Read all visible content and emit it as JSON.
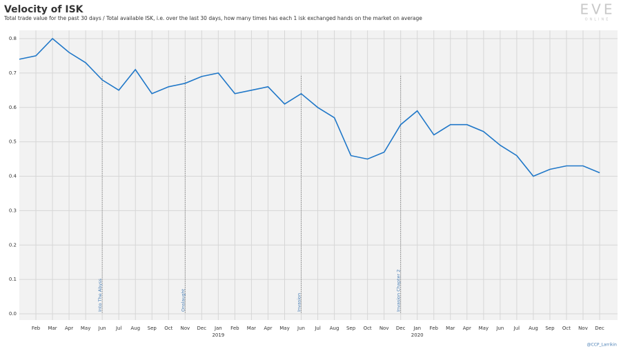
{
  "chart_data": {
    "type": "line",
    "title": "Velocity of ISK",
    "subtitle": "Total trade value for the past 30 days / Total available ISK, i.e. over the last 30 days, how many times has each 1 isk exchanged hands on the market on average",
    "logo": "EVE",
    "logo_sub": "ONLINE",
    "credit": "@CCP_Larrikin",
    "x": [
      "2018-01",
      "2018-02",
      "2018-03",
      "2018-04",
      "2018-05",
      "2018-06",
      "2018-07",
      "2018-08",
      "2018-09",
      "2018-10",
      "2018-11",
      "2018-12",
      "2019-01",
      "2019-02",
      "2019-03",
      "2019-04",
      "2019-05",
      "2019-06",
      "2019-07",
      "2019-08",
      "2019-09",
      "2019-10",
      "2019-11",
      "2019-12",
      "2020-01",
      "2020-02",
      "2020-03",
      "2020-04",
      "2020-05",
      "2020-06",
      "2020-07",
      "2020-08",
      "2020-09",
      "2020-10",
      "2020-11",
      "2020-12"
    ],
    "series": [
      {
        "name": "Velocity",
        "color": "#1f77c8",
        "values": [
          0.74,
          0.75,
          0.8,
          0.76,
          0.73,
          0.68,
          0.65,
          0.71,
          0.64,
          0.66,
          0.67,
          0.69,
          0.7,
          0.64,
          0.65,
          0.66,
          0.61,
          0.64,
          0.6,
          0.57,
          0.46,
          0.45,
          0.47,
          0.55,
          0.59,
          0.52,
          0.55,
          0.55,
          0.53,
          0.49,
          0.46,
          0.4,
          0.42,
          0.43,
          0.43,
          0.41
        ]
      }
    ],
    "ylim": [
      0,
      0.8
    ],
    "yticks": [
      {
        "value": 0,
        "label": "0.0"
      },
      0.1,
      0.2,
      0.3,
      0.4,
      0.5,
      0.6,
      0.7,
      0.8
    ],
    "xticks": [
      {
        "value": "2018-02",
        "label": "Feb"
      },
      {
        "value": "2018-03",
        "label": "Mar"
      },
      {
        "value": "2018-04",
        "label": "Apr"
      },
      {
        "value": "2018-05",
        "label": "May"
      },
      {
        "value": "2018-06",
        "label": "Jun"
      },
      {
        "value": "2018-07",
        "label": "Jul"
      },
      {
        "value": "2018-08",
        "label": "Aug"
      },
      {
        "value": "2018-09",
        "label": "Sep"
      },
      {
        "value": "2018-10",
        "label": "Oct"
      },
      {
        "value": "2018-11",
        "label": "Nov"
      },
      {
        "value": "2018-12",
        "label": "Dec"
      },
      {
        "value": "2019-01",
        "label": "Jan"
      },
      {
        "value": "2019-02",
        "label": "Feb"
      },
      {
        "value": "2019-03",
        "label": "Mar"
      },
      {
        "value": "2019-04",
        "label": "Apr"
      },
      {
        "value": "2019-05",
        "label": "May"
      },
      {
        "value": "2019-06",
        "label": "Jun"
      },
      {
        "value": "2019-07",
        "label": "Jul"
      },
      {
        "value": "2019-08",
        "label": "Aug"
      },
      {
        "value": "2019-09",
        "label": "Sep"
      },
      {
        "value": "2019-10",
        "label": "Oct"
      },
      {
        "value": "2019-11",
        "label": "Nov"
      },
      {
        "value": "2019-12",
        "label": "Dec"
      },
      {
        "value": "2020-01",
        "label": "Jan"
      },
      {
        "value": "2020-02",
        "label": "Feb"
      },
      {
        "value": "2020-03",
        "label": "Mar"
      },
      {
        "value": "2020-04",
        "label": "Apr"
      },
      {
        "value": "2020-05",
        "label": "May"
      },
      {
        "value": "2020-06",
        "label": "Jun"
      },
      {
        "value": "2020-07",
        "label": "Jul"
      },
      {
        "value": "2020-08",
        "label": "Aug"
      },
      {
        "value": "2020-09",
        "label": "Sep"
      },
      {
        "value": "2020-10",
        "label": "Oct"
      },
      {
        "value": "2020-11",
        "label": "Nov"
      },
      {
        "value": "2020-12",
        "label": "Dec"
      }
    ],
    "year_labels": [
      {
        "value": "2019-01",
        "label": "2019"
      },
      {
        "value": "2020-01",
        "label": "2020"
      }
    ],
    "annotations": [
      {
        "x": "2018-06",
        "label": "Into The Abyss"
      },
      {
        "x": "2018-11",
        "label": "Onslaught"
      },
      {
        "x": "2019-06",
        "label": "Invasion"
      },
      {
        "x": "2019-12",
        "label": "Invasion Chapter 2"
      }
    ],
    "grid": true
  }
}
